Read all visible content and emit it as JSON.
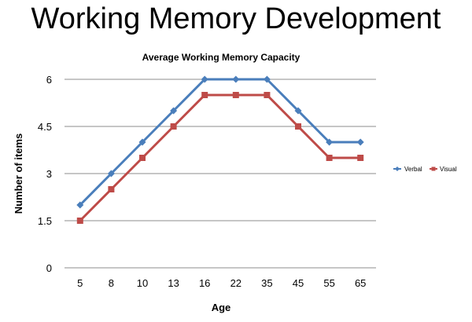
{
  "slide": {
    "title": "Working Memory Development"
  },
  "chart_data": {
    "type": "line",
    "title": "Average Working Memory Capacity",
    "xlabel": "Age",
    "ylabel": "Number of items",
    "categories": [
      "5",
      "8",
      "10",
      "13",
      "16",
      "22",
      "35",
      "45",
      "55",
      "65"
    ],
    "ylim": [
      0,
      6
    ],
    "yticks": [
      "0",
      "1.5",
      "3",
      "4.5",
      "6"
    ],
    "grid": true,
    "legend_position": "right",
    "series": [
      {
        "name": "Verbal",
        "color": "#4a7ebb",
        "marker": "diamond",
        "values": [
          2,
          3,
          4,
          5,
          6,
          6,
          6,
          5,
          4,
          4
        ]
      },
      {
        "name": "Visual",
        "color": "#be4b48",
        "marker": "square",
        "values": [
          1.5,
          2.5,
          3.5,
          4.5,
          5.5,
          5.5,
          5.5,
          4.5,
          3.5,
          3.5
        ]
      }
    ]
  }
}
